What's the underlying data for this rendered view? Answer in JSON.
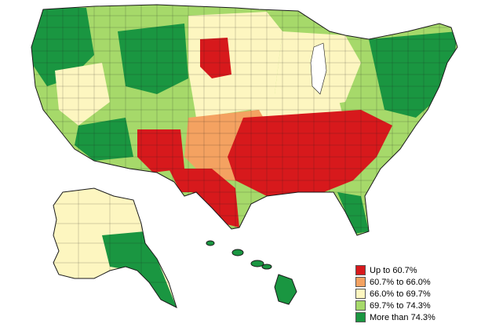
{
  "map": {
    "colors": {
      "c1": "#d7191c",
      "c2": "#f4a261",
      "c3": "#fdf6c0",
      "c4": "#a6d96a",
      "c5": "#1a9641",
      "border": "#1a1a1a"
    },
    "legend": [
      {
        "label": "Up to 60.7%",
        "color": "#d7191c"
      },
      {
        "label": "60.7% to 66.0%",
        "color": "#f4a261"
      },
      {
        "label": "66.0% to 69.7%",
        "color": "#fdf6c0"
      },
      {
        "label": "69.7% to 74.3%",
        "color": "#a6d96a"
      },
      {
        "label": "More than 74.3%",
        "color": "#1a9641"
      }
    ]
  }
}
